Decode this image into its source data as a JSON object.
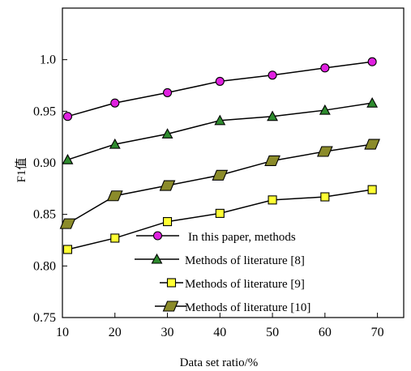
{
  "chart_data": {
    "type": "line",
    "xlabel": "Data set ratio/%",
    "ylabel": "F1值",
    "xlim": [
      10,
      75
    ],
    "ylim": [
      0.75,
      1.05
    ],
    "x_ticks": [
      "10",
      "20",
      "30",
      "40",
      "50",
      "60",
      "70"
    ],
    "y_ticks": [
      "0.75",
      "0.80",
      "0.85",
      "0.90",
      "0.95",
      "1.0"
    ],
    "grid": false,
    "legend_position": "bottom-right",
    "series": [
      {
        "name": "In this paper, methods",
        "marker": "circle",
        "marker_color": "#e020e0",
        "x": [
          11,
          20,
          30,
          40,
          50,
          60,
          69
        ],
        "values": [
          0.945,
          0.958,
          0.968,
          0.979,
          0.985,
          0.992,
          0.998
        ]
      },
      {
        "name": "Methods of literature [8]",
        "marker": "triangle",
        "marker_color": "#2e8b2e",
        "x": [
          11,
          20,
          30,
          40,
          50,
          60,
          69
        ],
        "values": [
          0.903,
          0.918,
          0.928,
          0.941,
          0.945,
          0.951,
          0.958
        ]
      },
      {
        "name": "Methods of literature [9]",
        "marker": "square",
        "marker_color": "#ffff33",
        "x": [
          11,
          20,
          30,
          40,
          50,
          60,
          69
        ],
        "values": [
          0.816,
          0.827,
          0.843,
          0.851,
          0.864,
          0.867,
          0.874
        ]
      },
      {
        "name": "Methods of literature [10]",
        "marker": "parallelogram",
        "marker_color": "#8b8b2a",
        "x": [
          11,
          20,
          30,
          40,
          50,
          60,
          69
        ],
        "values": [
          0.841,
          0.868,
          0.878,
          0.888,
          0.902,
          0.911,
          0.918
        ]
      }
    ]
  }
}
